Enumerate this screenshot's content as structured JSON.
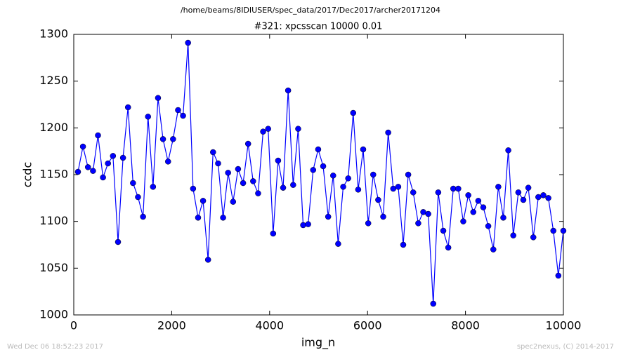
{
  "chart_data": {
    "type": "line",
    "suptitle": "/home/beams/8IDIUSER/spec_data/2017/Dec2017/archer20171204",
    "title": "#321: xpcsscan 10000 0.01",
    "x_label": "img_n",
    "y_label": "ccdc",
    "footer_left": "Wed Dec 06 18:52:23 2017",
    "footer_right": "spec2nexus, (C) 2014-2017",
    "x": [
      86,
      188,
      290,
      393,
      495,
      597,
      699,
      801,
      904,
      1006,
      1108,
      1210,
      1312,
      1415,
      1517,
      1619,
      1721,
      1823,
      1926,
      2028,
      2130,
      2232,
      2334,
      2437,
      2539,
      2641,
      2743,
      2845,
      2948,
      3050,
      3152,
      3254,
      3356,
      3459,
      3561,
      3663,
      3765,
      3867,
      3970,
      4072,
      4174,
      4276,
      4378,
      4481,
      4583,
      4685,
      4787,
      4889,
      4992,
      5094,
      5196,
      5298,
      5400,
      5503,
      5605,
      5707,
      5809,
      5911,
      6014,
      6116,
      6218,
      6320,
      6422,
      6525,
      6627,
      6729,
      6831,
      6933,
      7036,
      7138,
      7240,
      7342,
      7444,
      7547,
      7649,
      7751,
      7853,
      7955,
      8058,
      8160,
      8262,
      8364,
      8466,
      8569,
      8671,
      8773,
      8875,
      8977,
      9080,
      9182,
      9284,
      9386,
      9488,
      9591,
      9693,
      9795,
      9897,
      9999
    ],
    "series": [
      {
        "color": "#0000ff",
        "values": [
          1153,
          1180,
          1158,
          1154,
          1192,
          1147,
          1162,
          1170,
          1078,
          1168,
          1222,
          1141,
          1126,
          1105,
          1212,
          1137,
          1232,
          1188,
          1164,
          1188,
          1219,
          1213,
          1291,
          1135,
          1104,
          1122,
          1059,
          1174,
          1162,
          1104,
          1152,
          1121,
          1156,
          1141,
          1183,
          1143,
          1130,
          1196,
          1199,
          1087,
          1165,
          1136,
          1240,
          1139,
          1199,
          1096,
          1097,
          1155,
          1177,
          1159,
          1105,
          1149,
          1076,
          1137,
          1146,
          1216,
          1134,
          1177,
          1098,
          1150,
          1123,
          1105,
          1195,
          1135,
          1137,
          1075,
          1150,
          1131,
          1098,
          1110,
          1108,
          1012,
          1131,
          1090,
          1072,
          1135,
          1135,
          1100,
          1128,
          1110,
          1122,
          1115,
          1095,
          1070,
          1137,
          1104,
          1176,
          1085,
          1131,
          1123,
          1136,
          1083,
          1126,
          1128,
          1125,
          1090,
          1042,
          1090
        ]
      }
    ],
    "xlim": [
      0,
      10000
    ],
    "xticks": [
      0,
      2000,
      4000,
      6000,
      8000,
      10000
    ],
    "ylim": [
      1000,
      1300
    ],
    "yticks": [
      1000,
      1050,
      1100,
      1150,
      1200,
      1250,
      1300
    ]
  }
}
